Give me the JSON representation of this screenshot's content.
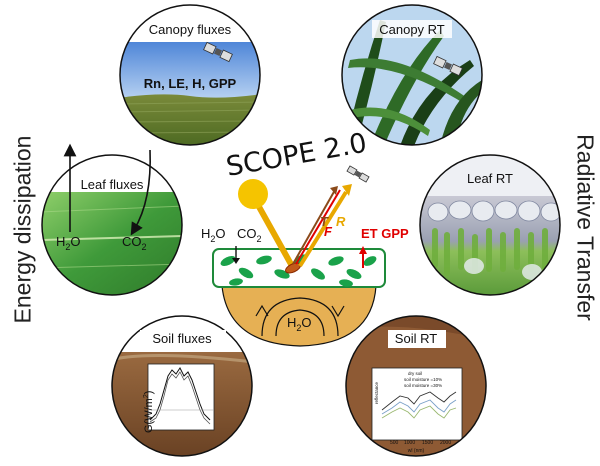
{
  "title": "SCOPE 2.0",
  "side_labels": {
    "left": "Energy dissipation",
    "right": "Radiative Transfer"
  },
  "panels": {
    "canopy_fluxes": {
      "title": "Canopy fluxes",
      "text": "Rn, LE, H, GPP"
    },
    "canopy_rt": {
      "title": "Canopy RT"
    },
    "leaf_fluxes": {
      "title": "Leaf fluxes",
      "h2o": "H",
      "h2o_sub": "2",
      "h2o_tail": "O",
      "co2": "CO",
      "co2_sub": "2"
    },
    "leaf_rt": {
      "title": "Leaf RT"
    },
    "soil_fluxes": {
      "title": "Soil fluxes",
      "axis_label": "G(W/m",
      "axis_sup": "2",
      "axis_close": ")"
    },
    "soil_rt": {
      "title": "Soil RT",
      "legend": [
        "dry soil",
        "soil moisture =10%",
        "soil moisture =30%"
      ],
      "ylabel": "reflectance",
      "xlabel": "wl (nm)",
      "xticks": [
        "500",
        "1000",
        "1500",
        "2000"
      ]
    }
  },
  "center": {
    "h2o": "H",
    "h2o_sub": "2",
    "h2o_tail": "O",
    "co2": "CO",
    "co2_sub": "2",
    "fluxes": "ET GPP",
    "t_label": "T",
    "f_label": "F",
    "r_label": "R",
    "soil_h2o": "H",
    "soil_h2o_sub": "2",
    "soil_h2o_tail": "O"
  },
  "colors": {
    "sun": "#f5c400",
    "sun_ray": "#e8a800",
    "red_accent": "#e00000",
    "brown_ray": "#8b4a1a",
    "canopy_box": "#1e8a3a",
    "leaf": "#1aa24a",
    "soil": "#e6b054"
  }
}
